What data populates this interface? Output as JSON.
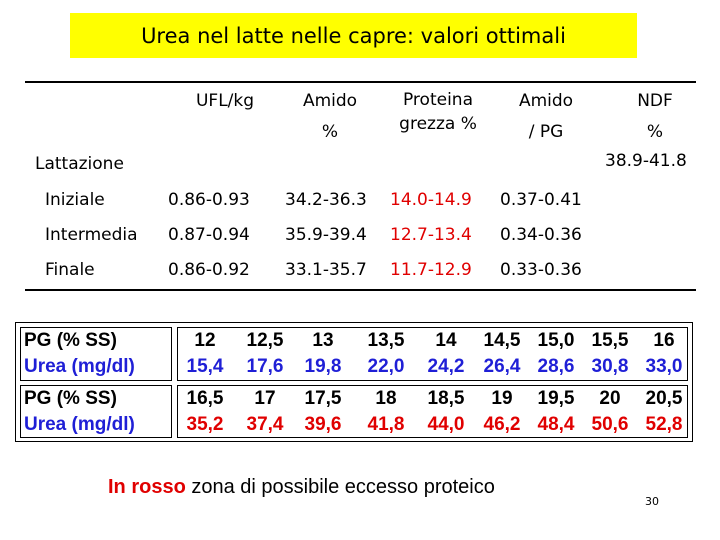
{
  "title": "Urea nel latte nelle capre: valori ottimali",
  "headers": {
    "ufl": "UFL/kg",
    "amido1": "Amido",
    "amido2": "%",
    "proteina1": "Proteina",
    "proteina2": "grezza %",
    "amidopg1": "Amido",
    "amidopg2": "/ PG",
    "ndf1": "NDF",
    "ndf2": "%"
  },
  "lattazione_label": "Lattazione",
  "ndf_value": "38.9-41.8",
  "rows": [
    {
      "label": "Iniziale",
      "ufl": "0.86-0.93",
      "amido": "34.2-36.3",
      "proteina": "14.0-14.9",
      "amido_pg": "0.37-0.41"
    },
    {
      "label": "Intermedia",
      "ufl": "0.87-0.94",
      "amido": "35.9-39.4",
      "proteina": "12.7-13.4",
      "amido_pg": "0.34-0.36"
    },
    {
      "label": "Finale",
      "ufl": "0.86-0.92",
      "amido": "33.1-35.7",
      "proteina": "11.7-12.9",
      "amido_pg": "0.33-0.36"
    }
  ],
  "grid": {
    "pg_label": "PG (% SS)",
    "urea_label": "Urea (mg/dl)",
    "blocks": [
      {
        "pg": [
          "12",
          "12,5",
          "13",
          "13,5",
          "14",
          "14,5",
          "15,0",
          "15,5",
          "16"
        ],
        "urea": [
          "15,4",
          "17,6",
          "19,8",
          "22,0",
          "24,2",
          "26,4",
          "28,6",
          "30,8",
          "33,0"
        ]
      },
      {
        "pg": [
          "16,5",
          "17",
          "17,5",
          "18",
          "18,5",
          "19",
          "19,5",
          "20",
          "20,5"
        ],
        "urea": [
          "35,2",
          "37,4",
          "39,6",
          "41,8",
          "44,0",
          "46,2",
          "48,4",
          "50,6",
          "52,8"
        ]
      }
    ]
  },
  "note": {
    "red": "In rosso",
    "rest": " zona di possibile eccesso proteico"
  },
  "page_number": "30",
  "colors": {
    "title_bg": "#ffff00",
    "red": "#e00000",
    "blue": "#1f1fd6"
  }
}
